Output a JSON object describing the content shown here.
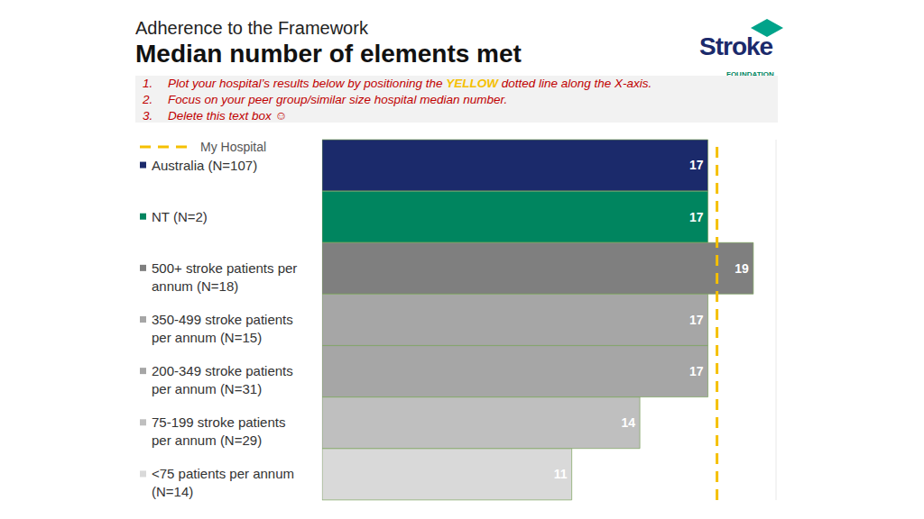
{
  "chart_data": {
    "type": "bar",
    "orientation": "horizontal",
    "title": "Adherence to the Framework",
    "subtitle": "Median number of elements met",
    "instructions": [
      {
        "number": "1.",
        "text": "Plot your hospital’s results below by positioning the YELLOW dotted line along the X-axis."
      },
      {
        "number": "2.",
        "text": "Focus on your peer group/similar size hospital median number."
      },
      {
        "number": "3.",
        "text": "Delete this text box ☺"
      }
    ],
    "instructions_highlight": {
      "word": "YELLOW",
      "color": "#f5c000"
    },
    "logo": {
      "name": "Stroke",
      "tagline": "FOUNDATION"
    },
    "categories": [
      "Australia (N=107)",
      "NT (N=2)",
      "500+ stroke patients per annum (N=18)",
      "350-499 stroke patients per annum (N=15)",
      "200-349 stroke patients per annum (N=31)",
      "75-199 stroke patients per annum (N=29)",
      "<75 patients per annum (N=14)"
    ],
    "values": [
      17,
      17,
      19,
      17,
      17,
      14,
      11
    ],
    "colors": [
      "#1b2a6b",
      "#00855f",
      "#7f7f7f",
      "#a6a6a6",
      "#a6a6a6",
      "#bfbfbf",
      "#d9d9d9"
    ],
    "xlim": [
      0,
      20
    ],
    "xticks": [
      0,
      1,
      2,
      3,
      4,
      5,
      6,
      7,
      8,
      9,
      10,
      11,
      12,
      13,
      14,
      15,
      16,
      17,
      18,
      19,
      20
    ],
    "grid": true,
    "data_labels": true,
    "tick_labels": false,
    "reference_line": {
      "name": "My Hospital",
      "value": 17.4,
      "color": "#f5c000",
      "line_style": "dashed"
    }
  }
}
